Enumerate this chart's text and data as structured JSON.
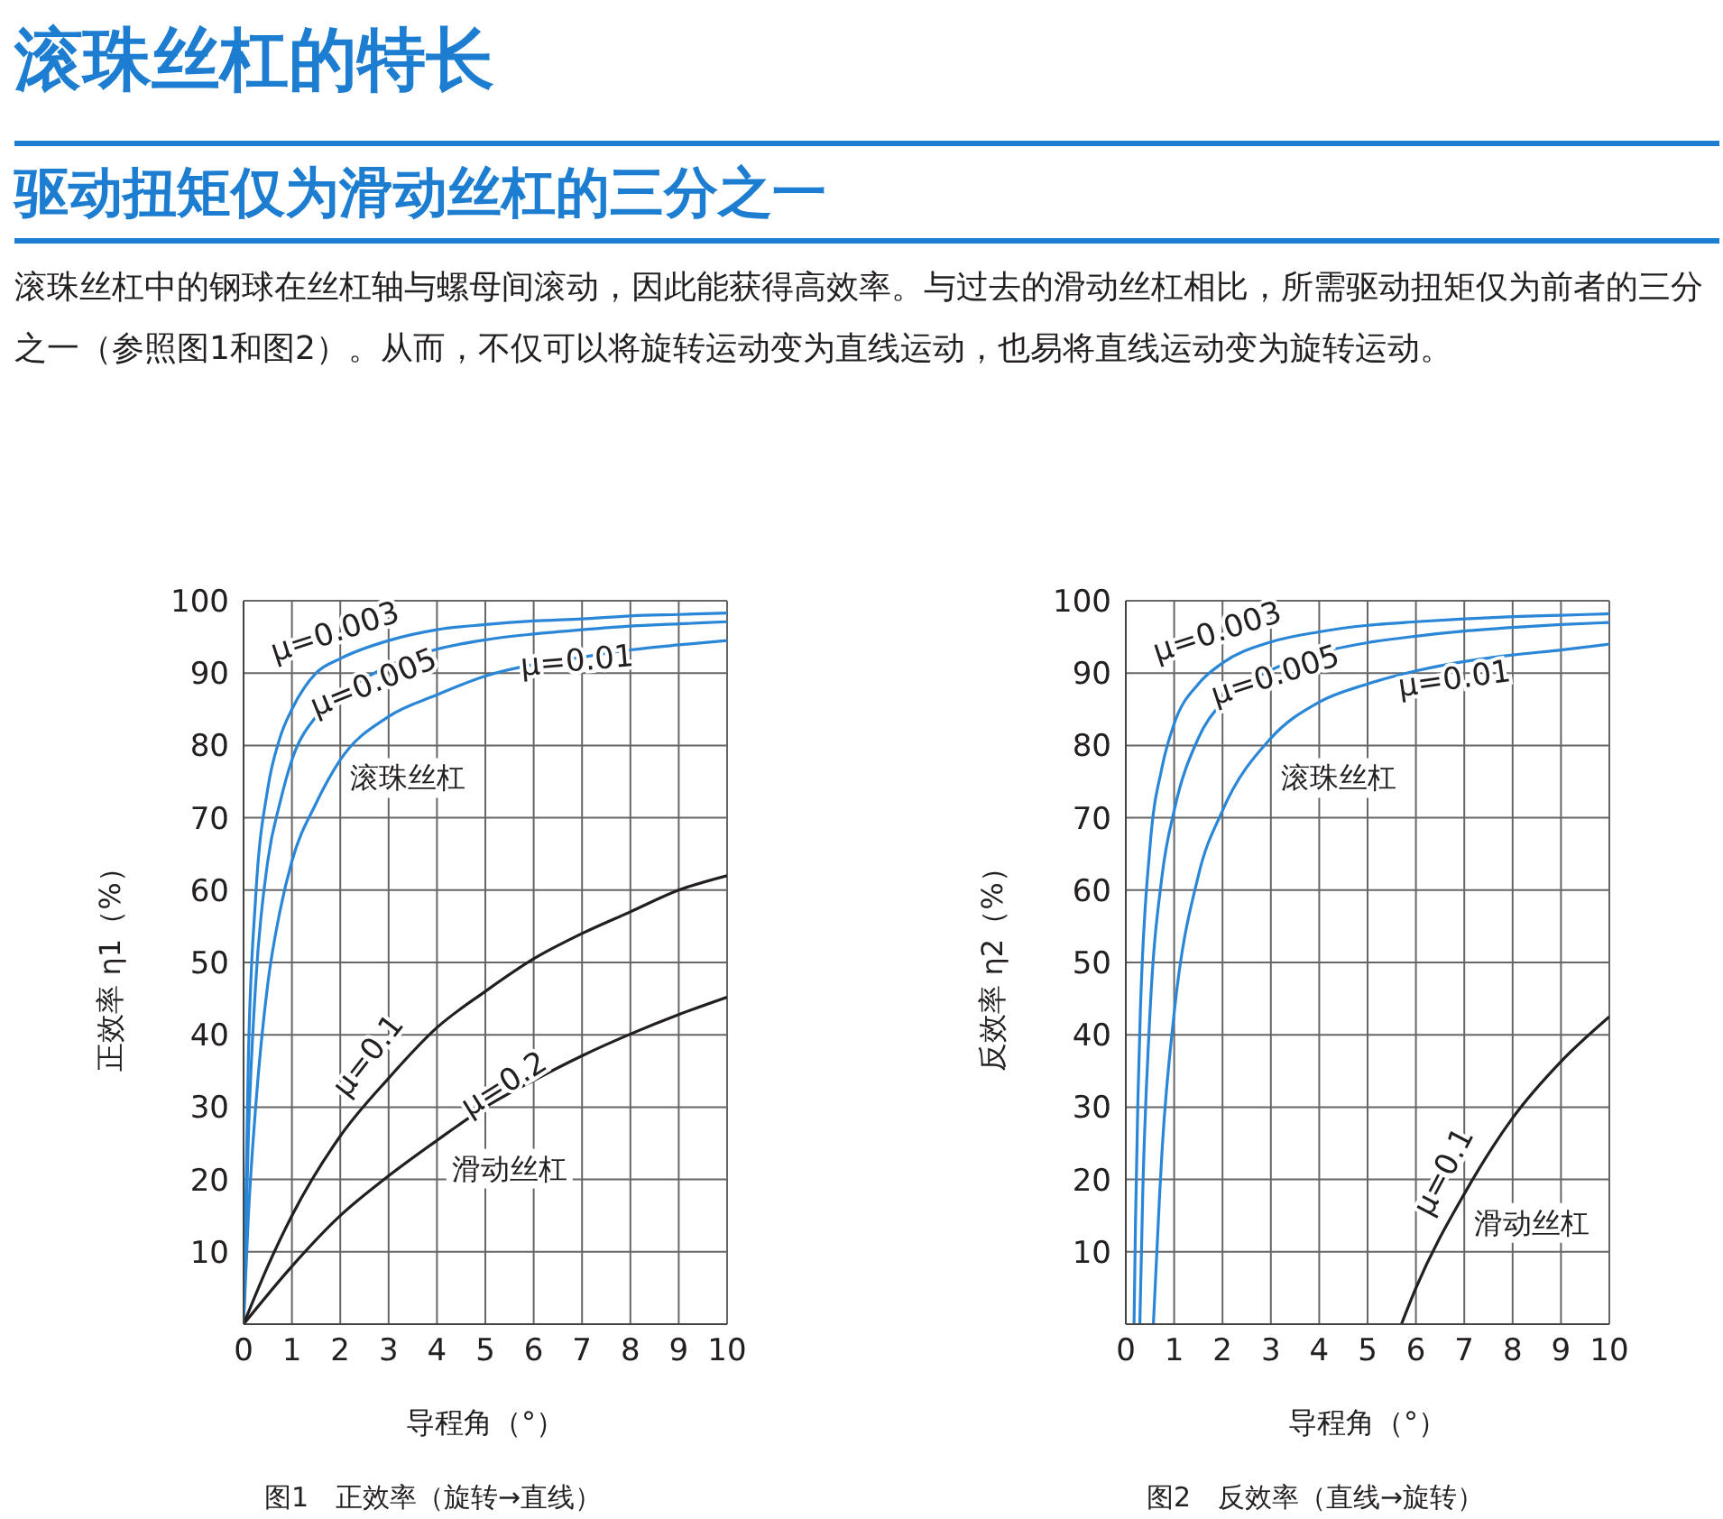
{
  "chart_data": [
    {
      "type": "line",
      "title": "滚珠丝杠的特长",
      "subtitle": "驱动扭矩仅为滑动丝杠的三分之一",
      "xlabel": "导程角（°）",
      "ylabel": "正效率 η1（%）",
      "xlim": [
        0,
        10
      ],
      "xticks": [
        0,
        1,
        2,
        3,
        4,
        5,
        6,
        7,
        8,
        9,
        10
      ],
      "ylim": [
        0,
        100
      ],
      "yticks": [
        10,
        20,
        30,
        40,
        50,
        60,
        70,
        80,
        90,
        100
      ],
      "grid": true,
      "marker": "none",
      "line_style": "solid",
      "annotations": [
        "滚珠丝杠中的钢球在丝杠轴与螺母间滚动，因此能获得高效率。与过去的滑动丝杠相比，所需驱动扭矩仅为前者的三分之一（参照图1和图2）。从而，不仅可以将旋转运动变为直线运动，也易将直线运动变为旋转运动。",
        "滚珠丝杠",
        "滑动丝杠",
        "图1　正效率（旋转→直线）"
      ],
      "series": [
        {
          "name": "μ=0.003",
          "color": "#2a86d6",
          "x": [
            0,
            0.1,
            0.25,
            0.5,
            0.75,
            1,
            1.5,
            2,
            3,
            4,
            5,
            6,
            7,
            8,
            9,
            10
          ],
          "values": [
            0,
            37,
            59,
            74,
            81,
            85,
            90,
            92,
            94.5,
            96,
            96.7,
            97.2,
            97.5,
            97.9,
            98.1,
            98.3
          ]
        },
        {
          "name": "μ=0.005",
          "color": "#2a86d6",
          "x": [
            0,
            0.1,
            0.25,
            0.5,
            0.75,
            1,
            1.5,
            2,
            3,
            4,
            5,
            6,
            7,
            8,
            9,
            10
          ],
          "values": [
            0,
            26,
            47,
            64,
            72,
            78,
            84,
            87,
            91,
            93.3,
            94.6,
            95.4,
            96,
            96.5,
            96.8,
            97.1
          ]
        },
        {
          "name": "μ=0.01",
          "color": "#2a86d6",
          "x": [
            0,
            0.1,
            0.25,
            0.5,
            0.75,
            1,
            1.5,
            2,
            3,
            4,
            5,
            6,
            7,
            8,
            9,
            10
          ],
          "values": [
            0,
            15,
            30,
            47,
            57,
            64,
            72,
            78,
            84,
            87,
            89.6,
            91.2,
            92.2,
            93.2,
            93.9,
            94.5
          ]
        },
        {
          "name": "μ=0.1",
          "color": "#231f20",
          "x": [
            0,
            0.5,
            1,
            2,
            3,
            4,
            5,
            6,
            7,
            8,
            9,
            10
          ],
          "values": [
            0,
            8,
            15,
            26,
            34,
            41,
            46,
            50.5,
            54,
            57,
            60,
            62
          ]
        },
        {
          "name": "μ=0.2",
          "color": "#231f20",
          "x": [
            0,
            1,
            2,
            3,
            4,
            5,
            6,
            7,
            8,
            9,
            10
          ],
          "values": [
            0,
            8,
            15,
            20.5,
            25.4,
            30,
            33.7,
            37.1,
            40.1,
            42.8,
            45.2
          ]
        }
      ]
    },
    {
      "type": "line",
      "xlabel": "导程角（°）",
      "ylabel": "反效率 η2（%）",
      "xlim": [
        0,
        10
      ],
      "xticks": [
        0,
        1,
        2,
        3,
        4,
        5,
        6,
        7,
        8,
        9,
        10
      ],
      "ylim": [
        0,
        100
      ],
      "yticks": [
        10,
        20,
        30,
        40,
        50,
        60,
        70,
        80,
        90,
        100
      ],
      "grid": true,
      "marker": "none",
      "line_style": "solid",
      "annotations": [
        "滚珠丝杠",
        "滑动丝杠",
        "图2　反效率（直线→旋转）"
      ],
      "series": [
        {
          "name": "μ=0.003",
          "color": "#2a86d6",
          "x": [
            0.17,
            0.2,
            0.25,
            0.3,
            0.5,
            0.75,
            1,
            1.5,
            2,
            3,
            4,
            5,
            6,
            7,
            8,
            9,
            10
          ],
          "values": [
            0,
            14,
            31,
            43,
            66,
            77,
            83,
            88.5,
            91.4,
            94.3,
            95.7,
            96.6,
            97.1,
            97.5,
            97.8,
            98,
            98.2
          ]
        },
        {
          "name": "μ=0.005",
          "color": "#2a86d6",
          "x": [
            0.29,
            0.35,
            0.5,
            0.75,
            1,
            1.5,
            2,
            3,
            4,
            5,
            6,
            7,
            8,
            9,
            10
          ],
          "values": [
            0,
            18,
            43,
            62,
            71,
            81,
            86,
            90.4,
            92.8,
            94.2,
            95.1,
            95.8,
            96.3,
            96.7,
            97
          ]
        },
        {
          "name": "μ=0.01",
          "color": "#2a86d6",
          "x": [
            0.57,
            0.7,
            0.75,
            1,
            1.5,
            2,
            3,
            4,
            5,
            6,
            7,
            8,
            9,
            10
          ],
          "values": [
            0,
            18,
            24,
            43,
            62,
            71,
            81,
            86,
            88.5,
            90.3,
            91.6,
            92.5,
            93.2,
            94
          ]
        },
        {
          "name": "μ=0.1",
          "color": "#231f20",
          "x": [
            5.7,
            6,
            7,
            8,
            9,
            10
          ],
          "values": [
            0,
            5,
            18,
            28.5,
            36.3,
            42.5
          ]
        }
      ]
    }
  ]
}
